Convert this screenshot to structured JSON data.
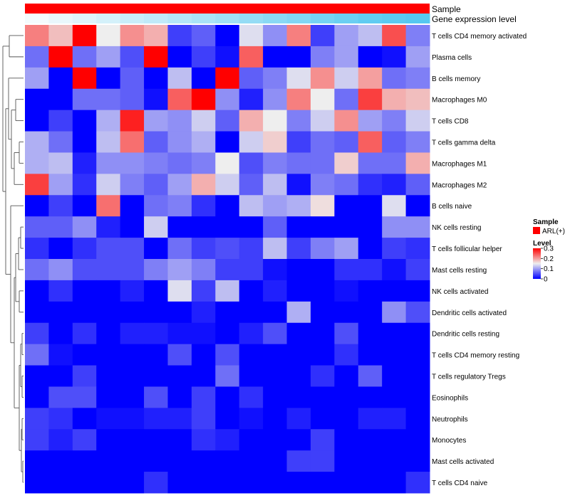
{
  "chart_data": {
    "type": "heatmap",
    "title": "",
    "annotation_rows": [
      "Sample",
      "Gene expression level"
    ],
    "rows": [
      "T cells CD4 memory activated",
      "Plasma cells",
      "B cells memory",
      "Macrophages M0",
      "T cells CD8",
      "T cells gamma delta",
      "Macrophages M1",
      "Macrophages M2",
      "B cells naive",
      "NK cells resting",
      "T cells follicular helper",
      "Mast cells resting",
      "NK cells activated",
      "Dendritic cells activated",
      "Dendritic cells resting",
      "T cells CD4 memory resting",
      "T cells regulatory  Tregs",
      "Eosinophils",
      "Neutrophils",
      "Monocytes",
      "Mast cells activated",
      "T cells CD4 naive"
    ],
    "values": [
      [
        0.22,
        0.18,
        0.3,
        0.15,
        0.21,
        0.19,
        0.04,
        0.06,
        0.0,
        0.14,
        0.09,
        0.22,
        0.04,
        0.1,
        0.12,
        0.25,
        0.08
      ],
      [
        0.07,
        0.3,
        0.07,
        0.1,
        0.05,
        0.3,
        0.0,
        0.04,
        0.01,
        0.24,
        0.0,
        0.0,
        0.08,
        0.1,
        0.0,
        0.01,
        0.1
      ],
      [
        0.1,
        0.0,
        0.3,
        0.0,
        0.06,
        0.0,
        0.12,
        0.0,
        0.3,
        0.06,
        0.08,
        0.14,
        0.21,
        0.13,
        0.2,
        0.07,
        0.08
      ],
      [
        0.0,
        0.0,
        0.07,
        0.07,
        0.06,
        0.01,
        0.24,
        0.3,
        0.09,
        0.02,
        0.09,
        0.22,
        0.15,
        0.07,
        0.26,
        0.19,
        0.18
      ],
      [
        0.0,
        0.04,
        0.0,
        0.11,
        0.28,
        0.1,
        0.09,
        0.13,
        0.06,
        0.19,
        0.15,
        0.08,
        0.13,
        0.21,
        0.1,
        0.08,
        0.13
      ],
      [
        0.11,
        0.07,
        0.0,
        0.12,
        0.23,
        0.06,
        0.09,
        0.11,
        0.0,
        0.13,
        0.17,
        0.04,
        0.07,
        0.06,
        0.24,
        0.06,
        0.08
      ],
      [
        0.11,
        0.12,
        0.02,
        0.09,
        0.09,
        0.08,
        0.07,
        0.08,
        0.15,
        0.05,
        0.08,
        0.07,
        0.07,
        0.17,
        0.07,
        0.07,
        0.19
      ],
      [
        0.26,
        0.1,
        0.03,
        0.13,
        0.08,
        0.06,
        0.1,
        0.19,
        0.13,
        0.06,
        0.12,
        0.01,
        0.08,
        0.07,
        0.03,
        0.02,
        0.06
      ],
      [
        0.0,
        0.04,
        0.0,
        0.23,
        0.0,
        0.07,
        0.08,
        0.03,
        0.0,
        0.12,
        0.1,
        0.11,
        0.16,
        0.0,
        0.0,
        0.14,
        0.0
      ],
      [
        0.06,
        0.06,
        0.09,
        0.02,
        0.0,
        0.13,
        0.0,
        0.0,
        0.0,
        0.0,
        0.06,
        0.0,
        0.0,
        0.0,
        0.0,
        0.09,
        0.09
      ],
      [
        0.03,
        0.0,
        0.03,
        0.05,
        0.05,
        0.0,
        0.07,
        0.04,
        0.05,
        0.04,
        0.12,
        0.04,
        0.08,
        0.1,
        0.0,
        0.04,
        0.03
      ],
      [
        0.07,
        0.09,
        0.05,
        0.05,
        0.05,
        0.08,
        0.1,
        0.08,
        0.04,
        0.04,
        0.01,
        0.0,
        0.0,
        0.03,
        0.03,
        0.01,
        0.04
      ],
      [
        0.0,
        0.03,
        0.0,
        0.0,
        0.02,
        0.0,
        0.14,
        0.04,
        0.12,
        0.0,
        0.02,
        0.0,
        0.0,
        0.01,
        0.0,
        0.0,
        0.0
      ],
      [
        0.0,
        0.0,
        0.0,
        0.0,
        0.0,
        0.0,
        0.0,
        0.02,
        0.0,
        0.0,
        0.0,
        0.11,
        0.0,
        0.0,
        0.0,
        0.09,
        0.05
      ],
      [
        0.04,
        0.0,
        0.03,
        0.0,
        0.02,
        0.02,
        0.01,
        0.01,
        0.0,
        0.02,
        0.05,
        0.0,
        0.0,
        0.05,
        0.0,
        0.0,
        0.0
      ],
      [
        0.07,
        0.01,
        0.0,
        0.0,
        0.0,
        0.0,
        0.05,
        0.0,
        0.05,
        0.0,
        0.0,
        0.0,
        0.0,
        0.03,
        0.0,
        0.0,
        0.0
      ],
      [
        0.0,
        0.0,
        0.04,
        0.0,
        0.0,
        0.0,
        0.0,
        0.0,
        0.07,
        0.0,
        0.0,
        0.0,
        0.03,
        0.0,
        0.06,
        0.0,
        0.0
      ],
      [
        0.0,
        0.05,
        0.05,
        0.0,
        0.0,
        0.05,
        0.0,
        0.04,
        0.0,
        0.03,
        0.0,
        0.0,
        0.0,
        0.0,
        0.0,
        0.0,
        0.0
      ],
      [
        0.04,
        0.03,
        0.0,
        0.01,
        0.01,
        0.02,
        0.02,
        0.04,
        0.0,
        0.01,
        0.0,
        0.02,
        0.0,
        0.0,
        0.02,
        0.02,
        0.0
      ],
      [
        0.04,
        0.02,
        0.04,
        0.0,
        0.0,
        0.0,
        0.0,
        0.03,
        0.02,
        0.0,
        0.0,
        0.0,
        0.04,
        0.0,
        0.0,
        0.0,
        0.0
      ],
      [
        0.0,
        0.0,
        0.0,
        0.0,
        0.0,
        0.0,
        0.0,
        0.0,
        0.0,
        0.0,
        0.0,
        0.04,
        0.04,
        0.0,
        0.0,
        0.0,
        0.0
      ],
      [
        0.0,
        0.0,
        0.0,
        0.0,
        0.0,
        0.03,
        0.0,
        0.0,
        0.0,
        0.0,
        0.0,
        0.0,
        0.0,
        0.0,
        0.0,
        0.0,
        0.03
      ]
    ],
    "gene_expression_level": [
      0.0,
      0.07,
      0.13,
      0.2,
      0.27,
      0.33,
      0.4,
      0.47,
      0.53,
      0.6,
      0.67,
      0.73,
      0.8,
      0.87,
      0.93,
      0.97,
      1.0
    ],
    "sample_group": "ARL(+)",
    "color_scale": {
      "min": 0,
      "max": 0.3,
      "low": "#0000ff",
      "mid": "#eeeeee",
      "high": "#ff0000"
    },
    "legend": {
      "sample_title": "Sample",
      "sample_entry": "ARL(+)",
      "sample_color": "#ff0000",
      "level_title": "Level",
      "level_ticks": [
        "0.3",
        "0.2",
        "0.1",
        "0"
      ],
      "level_tick_values": [
        0.3,
        0.2,
        0.1,
        0
      ]
    },
    "annotation_colors": {
      "sample": "#ff0000",
      "gene_low": "#f4fbfd",
      "gene_high": "#56c8f0"
    }
  }
}
